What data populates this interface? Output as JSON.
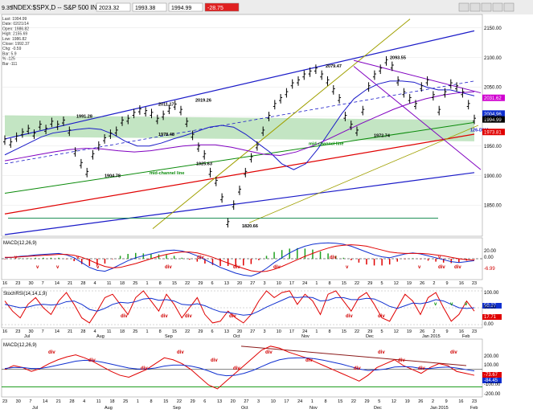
{
  "window": {
    "title": "INDEX:$SPX,D -- S&P 500 INDEX",
    "fields": [
      "2023.32",
      "1993.38",
      "1994.99",
      "-28.75"
    ],
    "small_value": "9.35"
  },
  "info_panel": [
    "Last: 1994.99",
    "Date: 02/21/14",
    "Open: 1986.82",
    "High: 2155.69",
    "Low: 1986.82",
    "Close: 1992.37",
    "Chg: -0.59",
    "Bar: 5.9",
    "% -125",
    "Bar -111"
  ],
  "colors": {
    "price_up": "#000000",
    "bb_channel": "#1a1ac8",
    "mid_channel": "#0a8a0a",
    "lower_channel": "#1a1ac8",
    "ma_red": "#e00000",
    "ma_purple": "#8000c0",
    "ma_magenta": "#e000e0",
    "dma_band": "#b8e0b8",
    "olive": "#a0a000",
    "macd_blue": "#1030d0",
    "macd_red": "#e00000",
    "hist_green": "#20a020",
    "hist_red": "#e00000",
    "stoch_red": "#e00000",
    "stoch_blue": "#1030d0",
    "annot_red": "#d00000",
    "annot_green": "#009000"
  },
  "chart_data": [
    {
      "type": "line",
      "panel": "price",
      "title": "INDEX:$SPX,D -- S&P 500 INDEX",
      "ylim": [
        1800,
        2170
      ],
      "y_ticks": [
        1850,
        1900,
        1950,
        2000,
        2050,
        2100,
        2150
      ],
      "x_ticks": [
        "16",
        "23",
        "30",
        "7",
        "14",
        "21",
        "28",
        "4",
        "11",
        "18",
        "25",
        "1",
        "8",
        "15",
        "22",
        "29",
        "6",
        "13",
        "20",
        "27",
        "3",
        "10",
        "17",
        "24",
        "1",
        "8",
        "15",
        "22",
        "29",
        "5",
        "12",
        "19",
        "26",
        "2",
        "9",
        "16",
        "23"
      ],
      "month_labels": [
        "Jul",
        "Aug",
        "Sep",
        "Oct",
        "Nov",
        "Dec",
        "Jan 2015",
        "Feb"
      ],
      "series": [
        {
          "name": "price",
          "values": [
            1960,
            1955,
            1965,
            1972,
            1978,
            1970,
            1985,
            1978,
            1990,
            1985,
            1992,
            1975,
            1940,
            1920,
            1905,
            1935,
            1950,
            1962,
            1970,
            1975,
            1992,
            1995,
            2005,
            2011,
            2008,
            2005,
            1995,
            2002,
            2012,
            2019,
            2010,
            1990,
            1968,
            1948,
            1935,
            1905,
            1890,
            1862,
            1820,
            1850,
            1875,
            1905,
            1930,
            1950,
            1975,
            2000,
            2020,
            2030,
            2040,
            2055,
            2060,
            2070,
            2075,
            2080,
            2070,
            2060,
            2045,
            2030,
            2000,
            1985,
            1975,
            2010,
            2050,
            2070,
            2080,
            2094,
            2085,
            2060,
            2040,
            2030,
            2020,
            2050,
            2060,
            2035,
            2010,
            2040,
            2055,
            2050,
            2040,
            2020,
            1995
          ]
        }
      ],
      "annotations": [
        "1991.28",
        "2011.17",
        "2019.26",
        "1904.78",
        "1978.48",
        "1925.63",
        "1820.66",
        "2079.47",
        "2093.55",
        "1972.74",
        "126-DMA",
        "mid-channel line",
        "mid-channel line"
      ],
      "right_labels": [
        {
          "value": "2150.00"
        },
        {
          "value": "2100.00"
        },
        {
          "value": "2050.00"
        },
        {
          "value": "2031.62"
        },
        {
          "value": "2004.96"
        },
        {
          "value": "1994.99"
        },
        {
          "value": "2000.00"
        },
        {
          "value": "1973.81"
        },
        {
          "value": "1950.00"
        },
        {
          "value": "1900.00"
        },
        {
          "value": "1850.00"
        }
      ]
    },
    {
      "type": "line",
      "panel": "macd_mid",
      "title": "MACD(12,26,9)",
      "ylim": [
        -40,
        40
      ],
      "y_ticks": [
        20,
        0
      ],
      "series": [
        {
          "name": "MACD",
          "values": [
            2,
            3,
            5,
            6,
            8,
            9,
            10,
            11,
            8,
            2,
            -8,
            -18,
            -24,
            -26,
            -20,
            -12,
            -4,
            2,
            6,
            10,
            14,
            17,
            18,
            16,
            12,
            6,
            -2,
            -10,
            -18,
            -24,
            -30,
            -34,
            -36,
            -30,
            -20,
            -8,
            2,
            12,
            20,
            26,
            30,
            32,
            33,
            32,
            30,
            26,
            20,
            14,
            8,
            4,
            2,
            6,
            10,
            12,
            10,
            6,
            2,
            -2,
            -6,
            -8,
            -6,
            -4
          ]
        },
        {
          "name": "Signal",
          "values": [
            3,
            3,
            4,
            5,
            6,
            7,
            8,
            9,
            9,
            7,
            3,
            -3,
            -10,
            -16,
            -19,
            -18,
            -14,
            -10,
            -5,
            0,
            5,
            9,
            12,
            14,
            14,
            12,
            8,
            3,
            -3,
            -9,
            -15,
            -20,
            -25,
            -27,
            -26,
            -22,
            -16,
            -9,
            -2,
            5,
            11,
            17,
            22,
            26,
            28,
            29,
            28,
            26,
            22,
            18,
            14,
            12,
            11,
            11,
            11,
            10,
            8,
            6,
            3,
            0,
            -2,
            -3
          ]
        }
      ],
      "histogram": [
        -1,
        0,
        1,
        1,
        2,
        2,
        2,
        2,
        -1,
        -5,
        -11,
        -15,
        -14,
        -10,
        -1,
        6,
        10,
        12,
        11,
        10,
        9,
        8,
        6,
        2,
        -2,
        -6,
        -10,
        -13,
        -15,
        -15,
        -15,
        -14,
        -11,
        -3,
        6,
        14,
        18,
        21,
        22,
        21,
        19,
        15,
        11,
        6,
        2,
        -3,
        -8,
        -12,
        -14,
        -14,
        -12,
        -6,
        -1,
        1,
        -1,
        -4,
        -6,
        -8,
        -9,
        -8,
        -4,
        -1
      ],
      "right_labels": [
        "20.00",
        "0.00",
        "-6.99"
      ],
      "annotations": [
        "v",
        "v",
        "v",
        "v",
        "v",
        "div",
        "div",
        "div",
        "div",
        "div",
        "v",
        "v",
        "v",
        "div",
        "div"
      ]
    },
    {
      "type": "line",
      "panel": "stochrsi",
      "title": "StochRSI(14,14,1,9)",
      "ylim": [
        0,
        100
      ],
      "y_ticks": [
        100,
        50,
        0
      ],
      "series": [
        {
          "name": "StochRSI",
          "values": [
            70,
            40,
            20,
            60,
            80,
            50,
            30,
            70,
            95,
            60,
            20,
            5,
            40,
            80,
            90,
            60,
            30,
            80,
            100,
            70,
            40,
            90,
            60,
            20,
            50,
            80,
            30,
            5,
            10,
            40,
            20,
            5,
            30,
            70,
            100,
            80,
            95,
            100,
            60,
            90,
            70,
            30,
            90,
            100,
            70,
            40,
            80,
            95,
            60,
            20,
            10,
            50,
            90,
            70,
            30,
            80,
            95,
            50,
            10,
            30,
            70,
            40
          ]
        },
        {
          "name": "Signal",
          "values": [
            60,
            55,
            50,
            52,
            58,
            60,
            58,
            60,
            68,
            70,
            60,
            45,
            40,
            48,
            60,
            66,
            64,
            68,
            76,
            78,
            72,
            74,
            70,
            60,
            58,
            62,
            56,
            46,
            38,
            36,
            32,
            28,
            30,
            40,
            52,
            62,
            72,
            82,
            80,
            82,
            80,
            70,
            72,
            80,
            80,
            74,
            74,
            78,
            76,
            66,
            54,
            48,
            56,
            64,
            62,
            66,
            74,
            70,
            60,
            50,
            48,
            50
          ]
        }
      ],
      "right_labels": [
        "100.00",
        "58.27",
        "50.00",
        "17.71",
        "0.00"
      ],
      "annotations": [
        "div",
        "div",
        "div",
        "div",
        "div",
        "div",
        "v",
        "v",
        "v"
      ]
    },
    {
      "type": "line",
      "panel": "macd_weekly",
      "title": "MACD(12,26,9)",
      "ylim": [
        -250,
        280
      ],
      "y_ticks": [
        200,
        100,
        0,
        -100,
        -200
      ],
      "series": [
        {
          "name": "MACD",
          "values": [
            0,
            40,
            20,
            -20,
            10,
            60,
            100,
            130,
            150,
            120,
            80,
            30,
            -20,
            -60,
            -80,
            -40,
            0,
            60,
            120,
            100,
            60,
            0,
            -80,
            -160,
            -200,
            -120,
            -40,
            40,
            120,
            200,
            240,
            220,
            180,
            150,
            120,
            80,
            40,
            0,
            -40,
            -80,
            -120,
            -60,
            20,
            60,
            100,
            40,
            0,
            -40,
            20,
            60,
            40,
            -20,
            -40,
            -60
          ]
        },
        {
          "name": "Signal",
          "values": [
            10,
            20,
            20,
            10,
            10,
            25,
            45,
            65,
            85,
            95,
            90,
            75,
            55,
            35,
            15,
            5,
            5,
            15,
            35,
            45,
            45,
            35,
            15,
            -15,
            -50,
            -65,
            -60,
            -40,
            -10,
            30,
            70,
            100,
            115,
            120,
            120,
            110,
            95,
            75,
            55,
            30,
            5,
            -10,
            -5,
            5,
            25,
            30,
            25,
            10,
            10,
            20,
            25,
            15,
            0,
            -15
          ]
        }
      ],
      "right_labels": [
        "200.00",
        "100.00",
        "-73.67",
        "-84.45",
        "-100.00",
        "-200.00"
      ],
      "annotations": [
        "div",
        "div",
        "div",
        "div",
        "div",
        "div",
        "div",
        "div",
        "div",
        "div",
        "div",
        "div",
        "div"
      ]
    }
  ]
}
